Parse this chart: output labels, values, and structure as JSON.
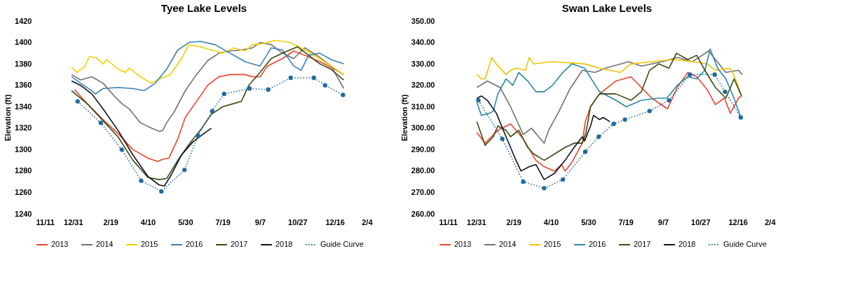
{
  "chart_data": [
    {
      "type": "line",
      "title": "Tyee Lake Levels",
      "ylabel": "Elevation (ft)",
      "legend": "bottom",
      "xlim": [
        "2017-11-11",
        "2019-02-04"
      ],
      "xticks": [
        {
          "value": "2017-11-11",
          "label": "11/11"
        },
        {
          "value": "2017-12-31",
          "label": "12/31"
        },
        {
          "value": "2018-02-19",
          "label": "2/19"
        },
        {
          "value": "2018-04-10",
          "label": "4/10"
        },
        {
          "value": "2018-05-30",
          "label": "5/30"
        },
        {
          "value": "2018-07-19",
          "label": "7/19"
        },
        {
          "value": "2018-09-07",
          "label": "9/7"
        },
        {
          "value": "2018-10-27",
          "label": "10/27"
        },
        {
          "value": "2018-12-16",
          "label": "12/16"
        },
        {
          "value": "2019-02-04",
          "label": "2/4"
        }
      ],
      "ylim": [
        1240,
        1420
      ],
      "yticks": [
        1240,
        1260,
        1280,
        1300,
        1320,
        1340,
        1360,
        1380,
        1400,
        1420
      ],
      "series": [
        {
          "name": "2013",
          "color": "#e8452c",
          "x": [
            "2018-01-02",
            "2018-01-20",
            "2018-02-09",
            "2018-03-01",
            "2018-03-21",
            "2018-04-10",
            "2018-04-23",
            "2018-04-30",
            "2018-05-08",
            "2018-05-20",
            "2018-05-30",
            "2018-06-14",
            "2018-06-29",
            "2018-07-14",
            "2018-07-29",
            "2018-08-18",
            "2018-08-28",
            "2018-09-07",
            "2018-09-17",
            "2018-10-07",
            "2018-10-22",
            "2018-11-06",
            "2018-11-26",
            "2018-12-16",
            "2018-12-28"
          ],
          "values": [
            1356,
            1342,
            1328,
            1315,
            1300,
            1292,
            1289,
            1291,
            1292,
            1310,
            1330,
            1345,
            1360,
            1368,
            1370,
            1370,
            1368,
            1368,
            1378,
            1385,
            1392,
            1388,
            1382,
            1375,
            1370
          ]
        },
        {
          "name": "2014",
          "color": "#707070",
          "x": [
            "2017-12-29",
            "2018-01-10",
            "2018-01-25",
            "2018-02-09",
            "2018-02-24",
            "2018-03-06",
            "2018-03-16",
            "2018-03-31",
            "2018-04-15",
            "2018-04-25",
            "2018-04-30",
            "2018-05-05",
            "2018-05-15",
            "2018-05-30",
            "2018-06-14",
            "2018-06-29",
            "2018-07-14",
            "2018-07-29",
            "2018-08-13",
            "2018-08-28",
            "2018-09-07",
            "2018-09-22",
            "2018-10-07",
            "2018-10-22",
            "2018-11-06",
            "2018-11-26",
            "2018-12-11",
            "2018-12-28"
          ],
          "values": [
            1370,
            1365,
            1368,
            1362,
            1350,
            1343,
            1338,
            1325,
            1320,
            1317,
            1318,
            1325,
            1335,
            1355,
            1370,
            1383,
            1390,
            1392,
            1393,
            1395,
            1400,
            1398,
            1390,
            1385,
            1395,
            1386,
            1378,
            1357
          ]
        },
        {
          "name": "2015",
          "color": "#f2d000",
          "x": [
            "2017-12-29",
            "2018-01-05",
            "2018-01-15",
            "2018-01-22",
            "2018-01-30",
            "2018-02-09",
            "2018-02-14",
            "2018-03-01",
            "2018-03-11",
            "2018-03-16",
            "2018-03-31",
            "2018-04-15",
            "2018-04-25",
            "2018-05-10",
            "2018-05-25",
            "2018-06-04",
            "2018-06-19",
            "2018-07-09",
            "2018-07-19",
            "2018-08-03",
            "2018-08-18",
            "2018-08-28",
            "2018-09-12",
            "2018-09-27",
            "2018-10-17",
            "2018-11-06",
            "2018-11-26",
            "2018-12-11",
            "2018-12-28"
          ],
          "values": [
            1377,
            1372,
            1377,
            1387,
            1386,
            1380,
            1384,
            1375,
            1372,
            1376,
            1368,
            1362,
            1366,
            1370,
            1385,
            1398,
            1396,
            1392,
            1390,
            1395,
            1392,
            1398,
            1399,
            1402,
            1400,
            1393,
            1385,
            1378,
            1370
          ]
        },
        {
          "name": "2016",
          "color": "#3f7fb5",
          "x": [
            "2017-12-29",
            "2018-01-10",
            "2018-01-25",
            "2018-01-30",
            "2018-02-09",
            "2018-03-01",
            "2018-03-21",
            "2018-04-05",
            "2018-04-20",
            "2018-05-05",
            "2018-05-20",
            "2018-06-04",
            "2018-06-19",
            "2018-07-09",
            "2018-07-29",
            "2018-08-18",
            "2018-09-07",
            "2018-09-22",
            "2018-10-07",
            "2018-10-22",
            "2018-11-01",
            "2018-11-11",
            "2018-11-26",
            "2018-12-11",
            "2018-12-28"
          ],
          "values": [
            1368,
            1362,
            1355,
            1352,
            1357,
            1358,
            1357,
            1355,
            1362,
            1375,
            1393,
            1400,
            1401,
            1398,
            1390,
            1382,
            1378,
            1395,
            1393,
            1378,
            1374,
            1388,
            1390,
            1384,
            1380
          ]
        },
        {
          "name": "2017",
          "color": "#3b4a10",
          "x": [
            "2017-12-29",
            "2018-01-20",
            "2018-02-09",
            "2018-03-01",
            "2018-03-21",
            "2018-04-10",
            "2018-04-25",
            "2018-05-05",
            "2018-05-20",
            "2018-06-04",
            "2018-06-19",
            "2018-07-04",
            "2018-07-19",
            "2018-08-03",
            "2018-08-13",
            "2018-08-23",
            "2018-09-07",
            "2018-09-22",
            "2018-10-07",
            "2018-10-27",
            "2018-11-11",
            "2018-11-26",
            "2018-12-11",
            "2018-12-28"
          ],
          "values": [
            1355,
            1342,
            1327,
            1312,
            1290,
            1274,
            1272,
            1273,
            1290,
            1305,
            1318,
            1333,
            1340,
            1343,
            1345,
            1360,
            1372,
            1385,
            1390,
            1396,
            1388,
            1380,
            1375,
            1365
          ]
        },
        {
          "name": "2018",
          "color": "#101020",
          "x": [
            "2017-12-29",
            "2018-01-10",
            "2018-01-25",
            "2018-02-09",
            "2018-03-01",
            "2018-03-21",
            "2018-04-10",
            "2018-04-25",
            "2018-05-02",
            "2018-05-10",
            "2018-05-25",
            "2018-06-09",
            "2018-06-24",
            "2018-07-04"
          ],
          "values": [
            1364,
            1360,
            1352,
            1338,
            1318,
            1295,
            1275,
            1267,
            1266,
            1275,
            1295,
            1307,
            1315,
            1320
          ]
        },
        {
          "name": "Guide Curve",
          "color": "#1f6a9f",
          "line_style": "dotted",
          "marker": "circle",
          "x": [
            "2018-01-06",
            "2018-02-06",
            "2018-03-06",
            "2018-04-01",
            "2018-04-28",
            "2018-05-29",
            "2018-06-16",
            "2018-07-05",
            "2018-07-21",
            "2018-08-24",
            "2018-09-18",
            "2018-10-18",
            "2018-11-18",
            "2018-12-03",
            "2018-12-27"
          ],
          "values": [
            1345,
            1325,
            1300,
            1271,
            1261,
            1281,
            1313,
            1336,
            1352,
            1357,
            1356,
            1367,
            1367,
            1360,
            1351
          ]
        }
      ]
    },
    {
      "type": "line",
      "title": "Swan Lake Levels",
      "ylabel": "Elevation (ft)",
      "legend": "bottom",
      "xlim": [
        "2017-11-11",
        "2019-02-04"
      ],
      "xticks": [
        {
          "value": "2017-11-11",
          "label": "11/11"
        },
        {
          "value": "2017-12-31",
          "label": "12/31"
        },
        {
          "value": "2018-02-19",
          "label": "2/19"
        },
        {
          "value": "2018-04-10",
          "label": "4/10"
        },
        {
          "value": "2018-05-30",
          "label": "5/30"
        },
        {
          "value": "2018-07-19",
          "label": "7/19"
        },
        {
          "value": "2018-09-07",
          "label": "9/7"
        },
        {
          "value": "2018-10-27",
          "label": "10/27"
        },
        {
          "value": "2018-12-16",
          "label": "12/16"
        },
        {
          "value": "2019-02-04",
          "label": "2/4"
        }
      ],
      "ylim": [
        260,
        350
      ],
      "yticks": [
        {
          "value": 260,
          "label": "260.00"
        },
        {
          "value": 270,
          "label": "270.00"
        },
        {
          "value": 280,
          "label": "280.00"
        },
        {
          "value": 290,
          "label": "290.00"
        },
        {
          "value": 300,
          "label": "300.00"
        },
        {
          "value": 310,
          "label": "310.00"
        },
        {
          "value": 320,
          "label": "320.00"
        },
        {
          "value": 330,
          "label": "330.00"
        },
        {
          "value": 340,
          "label": "340.00"
        },
        {
          "value": 350,
          "label": "350.00"
        }
      ],
      "series": [
        {
          "name": "2013",
          "color": "#e8452c",
          "x": [
            "2018-01-01",
            "2018-01-12",
            "2018-01-29",
            "2018-02-15",
            "2018-03-04",
            "2018-03-21",
            "2018-04-01",
            "2018-04-15",
            "2018-04-24",
            "2018-04-29",
            "2018-05-08",
            "2018-05-22",
            "2018-05-26",
            "2018-06-02",
            "2018-06-14",
            "2018-07-06",
            "2018-07-26",
            "2018-08-09",
            "2018-08-23",
            "2018-09-13",
            "2018-09-26",
            "2018-10-10",
            "2018-10-22",
            "2018-11-05",
            "2018-11-16",
            "2018-11-28",
            "2018-12-06",
            "2018-12-17",
            "2018-12-21"
          ],
          "values": [
            298,
            293,
            299,
            302,
            295,
            285,
            282,
            280,
            283,
            280,
            284,
            293,
            303,
            310,
            316,
            322,
            324,
            319,
            314,
            309,
            319,
            326,
            324,
            318,
            311,
            314,
            307,
            314,
            315
          ]
        },
        {
          "name": "2014",
          "color": "#707070",
          "x": [
            "2018-01-01",
            "2018-01-15",
            "2018-02-01",
            "2018-02-15",
            "2018-03-04",
            "2018-03-15",
            "2018-04-01",
            "2018-04-07",
            "2018-04-21",
            "2018-05-05",
            "2018-05-22",
            "2018-06-08",
            "2018-06-22",
            "2018-07-23",
            "2018-08-09",
            "2018-09-06",
            "2018-09-26",
            "2018-10-16",
            "2018-11-07",
            "2018-11-30",
            "2018-12-17",
            "2018-12-22"
          ],
          "values": [
            319,
            322,
            319,
            310,
            297,
            300,
            293,
            299,
            308,
            318,
            327,
            326,
            328,
            331,
            329,
            331,
            333,
            331,
            336,
            326,
            327,
            325
          ]
        },
        {
          "name": "2015",
          "color": "#f2c200",
          "x": [
            "2018-01-01",
            "2018-01-07",
            "2018-01-12",
            "2018-01-21",
            "2018-01-29",
            "2018-02-09",
            "2018-02-15",
            "2018-02-23",
            "2018-03-07",
            "2018-03-12",
            "2018-03-18",
            "2018-04-12",
            "2018-05-25",
            "2018-06-14",
            "2018-07-12",
            "2018-07-26",
            "2018-08-23",
            "2018-09-20",
            "2018-10-18",
            "2018-11-05",
            "2018-11-16",
            "2018-12-06",
            "2018-12-14",
            "2018-12-21"
          ],
          "values": [
            325,
            323,
            323,
            333,
            329,
            325,
            327,
            328,
            327,
            333,
            330,
            331,
            330,
            328,
            326,
            330,
            331,
            332,
            331,
            330,
            327,
            328,
            322,
            315
          ]
        },
        {
          "name": "2016",
          "color": "#2a87a8",
          "x": [
            "2018-01-01",
            "2018-01-07",
            "2018-01-18",
            "2018-01-23",
            "2018-01-29",
            "2018-02-09",
            "2018-02-18",
            "2018-02-26",
            "2018-03-10",
            "2018-03-21",
            "2018-04-01",
            "2018-04-12",
            "2018-04-26",
            "2018-05-08",
            "2018-05-25",
            "2018-06-14",
            "2018-07-06",
            "2018-07-20",
            "2018-08-09",
            "2018-09-01",
            "2018-09-12",
            "2018-09-26",
            "2018-10-10",
            "2018-10-22",
            "2018-11-02",
            "2018-11-09",
            "2018-11-19",
            "2018-11-30",
            "2018-12-11",
            "2018-12-20"
          ],
          "values": [
            312,
            306,
            307,
            308,
            316,
            323,
            320,
            326,
            322,
            317,
            317,
            320,
            326,
            330,
            328,
            317,
            313,
            310,
            313,
            314,
            314,
            320,
            324,
            323,
            327,
            337,
            328,
            323,
            314,
            305
          ]
        },
        {
          "name": "2017",
          "color": "#3b4a10",
          "x": [
            "2018-01-01",
            "2018-01-07",
            "2018-01-12",
            "2018-01-23",
            "2018-01-29",
            "2018-02-09",
            "2018-02-15",
            "2018-02-26",
            "2018-03-10",
            "2018-03-18",
            "2018-04-01",
            "2018-04-15",
            "2018-04-29",
            "2018-05-11",
            "2018-05-22",
            "2018-05-27",
            "2018-06-02",
            "2018-06-14",
            "2018-07-06",
            "2018-07-26",
            "2018-08-09",
            "2018-08-20",
            "2018-09-01",
            "2018-09-15",
            "2018-09-25",
            "2018-10-10",
            "2018-10-22",
            "2018-11-02",
            "2018-11-16",
            "2018-11-30",
            "2018-12-11",
            "2018-12-21"
          ],
          "values": [
            303,
            297,
            292,
            296,
            301,
            299,
            296,
            299,
            291,
            288,
            285,
            288,
            291,
            293,
            293,
            298,
            310,
            316,
            316,
            313,
            317,
            327,
            330,
            328,
            335,
            332,
            334,
            327,
            319,
            314,
            323,
            315
          ]
        },
        {
          "name": "2018",
          "color": "#101020",
          "x": [
            "2018-01-01",
            "2018-01-07",
            "2018-01-15",
            "2018-01-27",
            "2018-02-09",
            "2018-02-21",
            "2018-03-01",
            "2018-03-12",
            "2018-03-21",
            "2018-04-01",
            "2018-04-15",
            "2018-04-29",
            "2018-05-11",
            "2018-05-22",
            "2018-05-25",
            "2018-06-02",
            "2018-06-06",
            "2018-06-14",
            "2018-06-19",
            "2018-06-28"
          ],
          "values": [
            314,
            315,
            313,
            307,
            296,
            286,
            280,
            282,
            283,
            276,
            279,
            285,
            291,
            296,
            294,
            301,
            306,
            304,
            305,
            303
          ]
        },
        {
          "name": "Guide Curve",
          "color": "#1f6a9f",
          "line_style": "dotted",
          "marker": "circle",
          "x": [
            "2018-01-03",
            "2018-02-04",
            "2018-03-04",
            "2018-04-01",
            "2018-04-26",
            "2018-05-26",
            "2018-06-13",
            "2018-07-03",
            "2018-07-18",
            "2018-08-20",
            "2018-09-15",
            "2018-10-13",
            "2018-11-15",
            "2018-11-29",
            "2018-12-20"
          ],
          "values": [
            313,
            295,
            275,
            272,
            276,
            289,
            296,
            302,
            304,
            308,
            313,
            325,
            325,
            317,
            305
          ]
        }
      ]
    }
  ]
}
